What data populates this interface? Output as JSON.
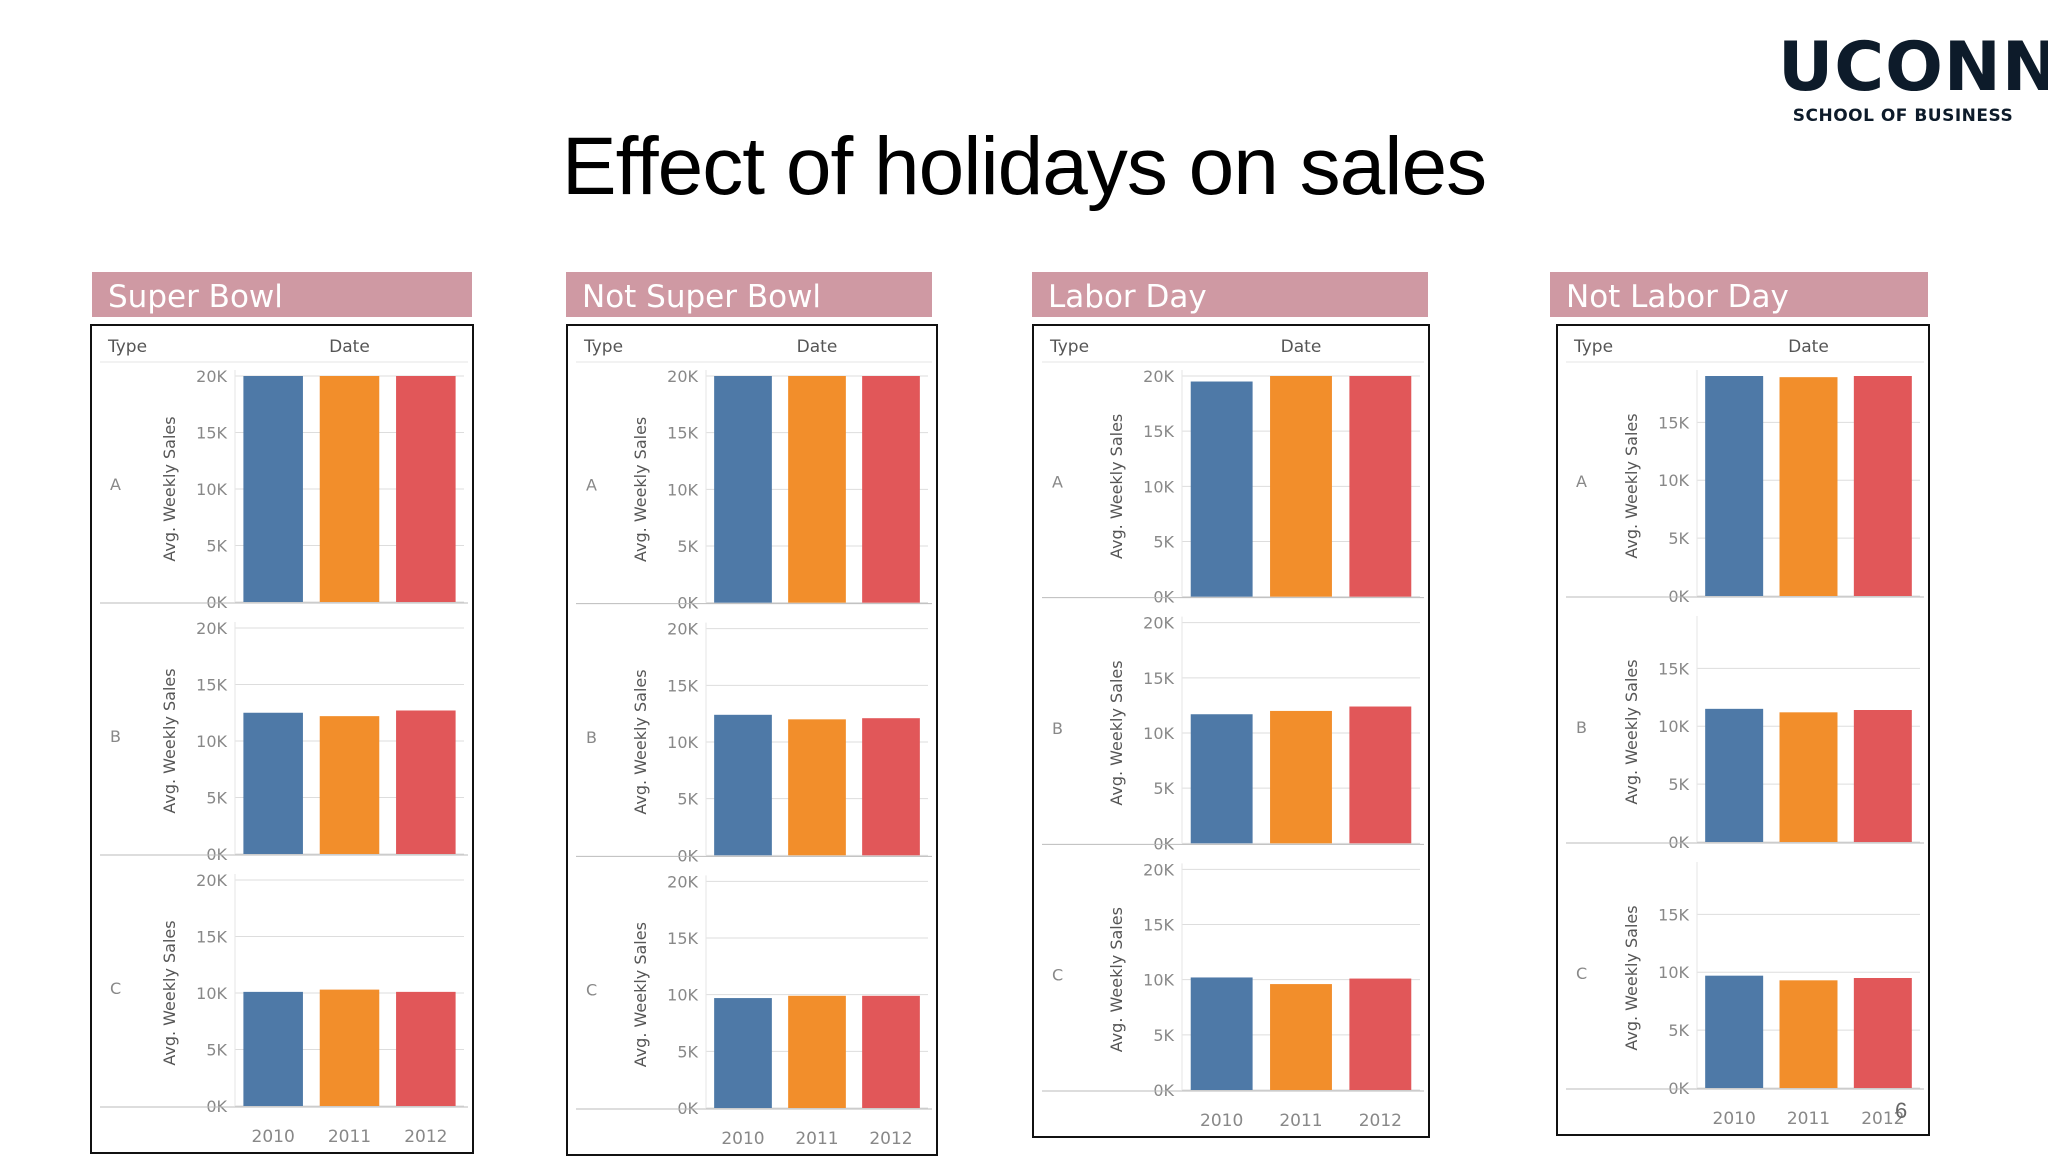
{
  "slide": {
    "title": "Effect of holidays on sales",
    "page_number": "6"
  },
  "logo": {
    "main": "UCONN",
    "sub": "SCHOOL OF BUSINESS"
  },
  "colors": {
    "header_bg": "#cf99a3",
    "bar_2010": "#4e79a7",
    "bar_2011": "#f28e2b",
    "bar_2012": "#e15759",
    "text": "#555555",
    "grid": "#dddddd"
  },
  "chart_data": [
    {
      "type": "bar",
      "title": "Super Bowl",
      "row_header": "Type",
      "col_header": "Date",
      "ylabel": "Avg. Weekly Sales",
      "categories": [
        "2010",
        "2011",
        "2012"
      ],
      "ylim": [
        0,
        20000
      ],
      "yticks": [
        "0K",
        "5K",
        "10K",
        "15K",
        "20K"
      ],
      "rows": [
        {
          "name": "A",
          "values": [
            20500,
            20300,
            21000
          ]
        },
        {
          "name": "B",
          "values": [
            12500,
            12200,
            12700
          ]
        },
        {
          "name": "C",
          "values": [
            10100,
            10300,
            10100
          ]
        }
      ]
    },
    {
      "type": "bar",
      "title": "Not Super Bowl",
      "row_header": "Type",
      "col_header": "Date",
      "ylabel": "Avg. Weekly Sales",
      "categories": [
        "2010",
        "2011",
        "2012"
      ],
      "ylim": [
        0,
        20000
      ],
      "yticks": [
        "0K",
        "5K",
        "10K",
        "15K",
        "20K"
      ],
      "rows": [
        {
          "name": "A",
          "values": [
            20300,
            20200,
            20200
          ]
        },
        {
          "name": "B",
          "values": [
            12400,
            12000,
            12100
          ]
        },
        {
          "name": "C",
          "values": [
            9700,
            9900,
            9900
          ]
        }
      ]
    },
    {
      "type": "bar",
      "title": "Labor Day",
      "row_header": "Type",
      "col_header": "Date",
      "ylabel": "Avg. Weekly Sales",
      "categories": [
        "2010",
        "2011",
        "2012"
      ],
      "ylim": [
        0,
        20000
      ],
      "yticks": [
        "0K",
        "5K",
        "10K",
        "15K",
        "20K"
      ],
      "rows": [
        {
          "name": "A",
          "values": [
            19500,
            20000,
            20700
          ]
        },
        {
          "name": "B",
          "values": [
            11700,
            12000,
            12400
          ]
        },
        {
          "name": "C",
          "values": [
            10200,
            9600,
            10100
          ]
        }
      ]
    },
    {
      "type": "bar",
      "title": "Not Labor Day",
      "row_header": "Type",
      "col_header": "Date",
      "ylabel": "Avg. Weekly Sales",
      "categories": [
        "2010",
        "2011",
        "2012"
      ],
      "ylim": [
        0,
        19000
      ],
      "yticks": [
        "0K",
        "5K",
        "10K",
        "15K"
      ],
      "rows": [
        {
          "name": "A",
          "values": [
            19000,
            18900,
            19000
          ]
        },
        {
          "name": "B",
          "values": [
            11500,
            11200,
            11400
          ]
        },
        {
          "name": "C",
          "values": [
            9700,
            9300,
            9500
          ]
        }
      ]
    }
  ]
}
